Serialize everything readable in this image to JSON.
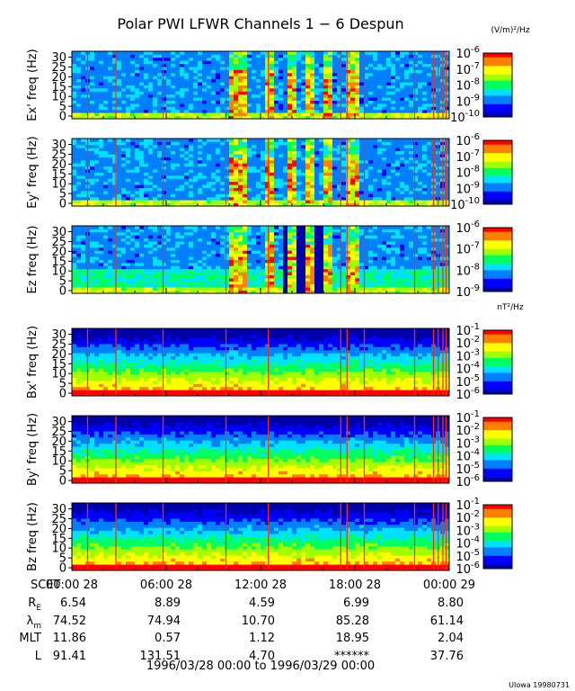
{
  "title": "Polar PWI LFWR Channels 1 − 6 Despun",
  "credit": "UIowa 19980731",
  "units": {
    "electric": "(V/m)²/Hz",
    "magnetic": "nT²/Hz"
  },
  "colors": {
    "palette": [
      "#0000a8",
      "#0000ff",
      "#0080ff",
      "#00e0ff",
      "#00ff60",
      "#a0ff00",
      "#ffff00",
      "#ff8000",
      "#ff0000"
    ],
    "background": "#0000c0",
    "line": "#ff3000"
  },
  "panels": [
    {
      "ylabel": "Ex' freq (Hz)",
      "yticks": [
        "0",
        "5",
        "10",
        "15",
        "20",
        "25",
        "30"
      ],
      "cbar": {
        "exponents": [
          "-6",
          "-7",
          "-8",
          "-9",
          "-10"
        ],
        "mantissa": "10"
      }
    },
    {
      "ylabel": "Ey' freq (Hz)",
      "yticks": [
        "0",
        "5",
        "10",
        "15",
        "20",
        "25",
        "30"
      ],
      "cbar": {
        "exponents": [
          "-6",
          "-7",
          "-8",
          "-9",
          "-10"
        ],
        "mantissa": "10"
      }
    },
    {
      "ylabel": "Ez freq (Hz)",
      "yticks": [
        "0",
        "5",
        "10",
        "15",
        "20",
        "25",
        "30"
      ],
      "cbar": {
        "exponents": [
          "-6",
          "-7",
          "-8",
          "-9"
        ],
        "mantissa": "10"
      }
    },
    {
      "ylabel": "Bx' freq (Hz)",
      "yticks": [
        "0",
        "5",
        "10",
        "15",
        "20",
        "25",
        "30"
      ],
      "cbar": {
        "exponents": [
          "-1",
          "-2",
          "-3",
          "-4",
          "-5",
          "-6"
        ],
        "mantissa": "10"
      }
    },
    {
      "ylabel": "By' freq (Hz)",
      "yticks": [
        "0",
        "5",
        "10",
        "15",
        "20",
        "25",
        "30"
      ],
      "cbar": {
        "exponents": [
          "-1",
          "-2",
          "-3",
          "-4",
          "-5",
          "-6"
        ],
        "mantissa": "10"
      }
    },
    {
      "ylabel": "Bz freq (Hz)",
      "yticks": [
        "0",
        "5",
        "10",
        "15",
        "20",
        "25",
        "30"
      ],
      "cbar": {
        "exponents": [
          "-1",
          "-2",
          "-3",
          "-4",
          "-5",
          "-6"
        ],
        "mantissa": "10"
      }
    }
  ],
  "ephemeris": {
    "rows": [
      {
        "label": "SCET",
        "values": [
          "00:00 28",
          "06:00 28",
          "12:00 28",
          "18:00 28",
          "00:00 29"
        ]
      },
      {
        "label": "R",
        "sub": "E",
        "values": [
          "6.54",
          "8.89",
          "4.59",
          "6.99",
          "8.80"
        ]
      },
      {
        "label": "λ",
        "sub": "m",
        "values": [
          "74.52",
          "74.94",
          "10.70",
          "85.28",
          "61.14"
        ]
      },
      {
        "label": "MLT",
        "values": [
          "11.86",
          "0.57",
          "1.12",
          "18.95",
          "2.04"
        ]
      },
      {
        "label": "L",
        "values": [
          "91.41",
          "131.51",
          "4.70",
          "******",
          "37.76"
        ]
      }
    ],
    "date_range": "1996/03/28 00:00 to 1996/03/29 00:00"
  },
  "chart_data": {
    "type": "heatmap",
    "title": "Polar PWI LFWR Channels 1 − 6 Despun",
    "x_range_hours": [
      0,
      24
    ],
    "y_range_hz": [
      0,
      33
    ],
    "panels": [
      {
        "channel": "Ex'",
        "ylabel": "Ex' freq (Hz)",
        "colorbar_exponents": [
          -10,
          -6
        ],
        "units": "(V/m)²/Hz"
      },
      {
        "channel": "Ey'",
        "ylabel": "Ey' freq (Hz)",
        "colorbar_exponents": [
          -10,
          -6
        ],
        "units": "(V/m)²/Hz"
      },
      {
        "channel": "Ez",
        "ylabel": "Ez freq (Hz)",
        "colorbar_exponents": [
          -9,
          -6
        ],
        "units": "(V/m)²/Hz"
      },
      {
        "channel": "Bx'",
        "ylabel": "Bx' freq (Hz)",
        "colorbar_exponents": [
          -6,
          -1
        ],
        "units": "nT²/Hz"
      },
      {
        "channel": "By'",
        "ylabel": "By' freq (Hz)",
        "colorbar_exponents": [
          -6,
          -1
        ],
        "units": "nT²/Hz"
      },
      {
        "channel": "Bz",
        "ylabel": "Bz freq (Hz)",
        "colorbar_exponents": [
          -6,
          -1
        ],
        "units": "nT²/Hz"
      }
    ],
    "vertical_lines_hours": [
      1.0,
      2.8,
      5.8,
      9.8,
      12.5,
      17.1,
      17.5,
      18.6,
      21.8,
      23.0,
      23.3,
      23.6,
      23.8
    ],
    "electric_bursts_hours": [
      [
        10.0,
        11.0
      ],
      [
        12.3,
        12.8
      ],
      [
        13.6,
        14.2
      ],
      [
        14.8,
        15.4
      ],
      [
        16.0,
        16.6
      ],
      [
        17.4,
        18.2
      ]
    ],
    "xticks": [
      "00:00 28",
      "06:00 28",
      "12:00 28",
      "18:00 28",
      "00:00 29"
    ]
  }
}
